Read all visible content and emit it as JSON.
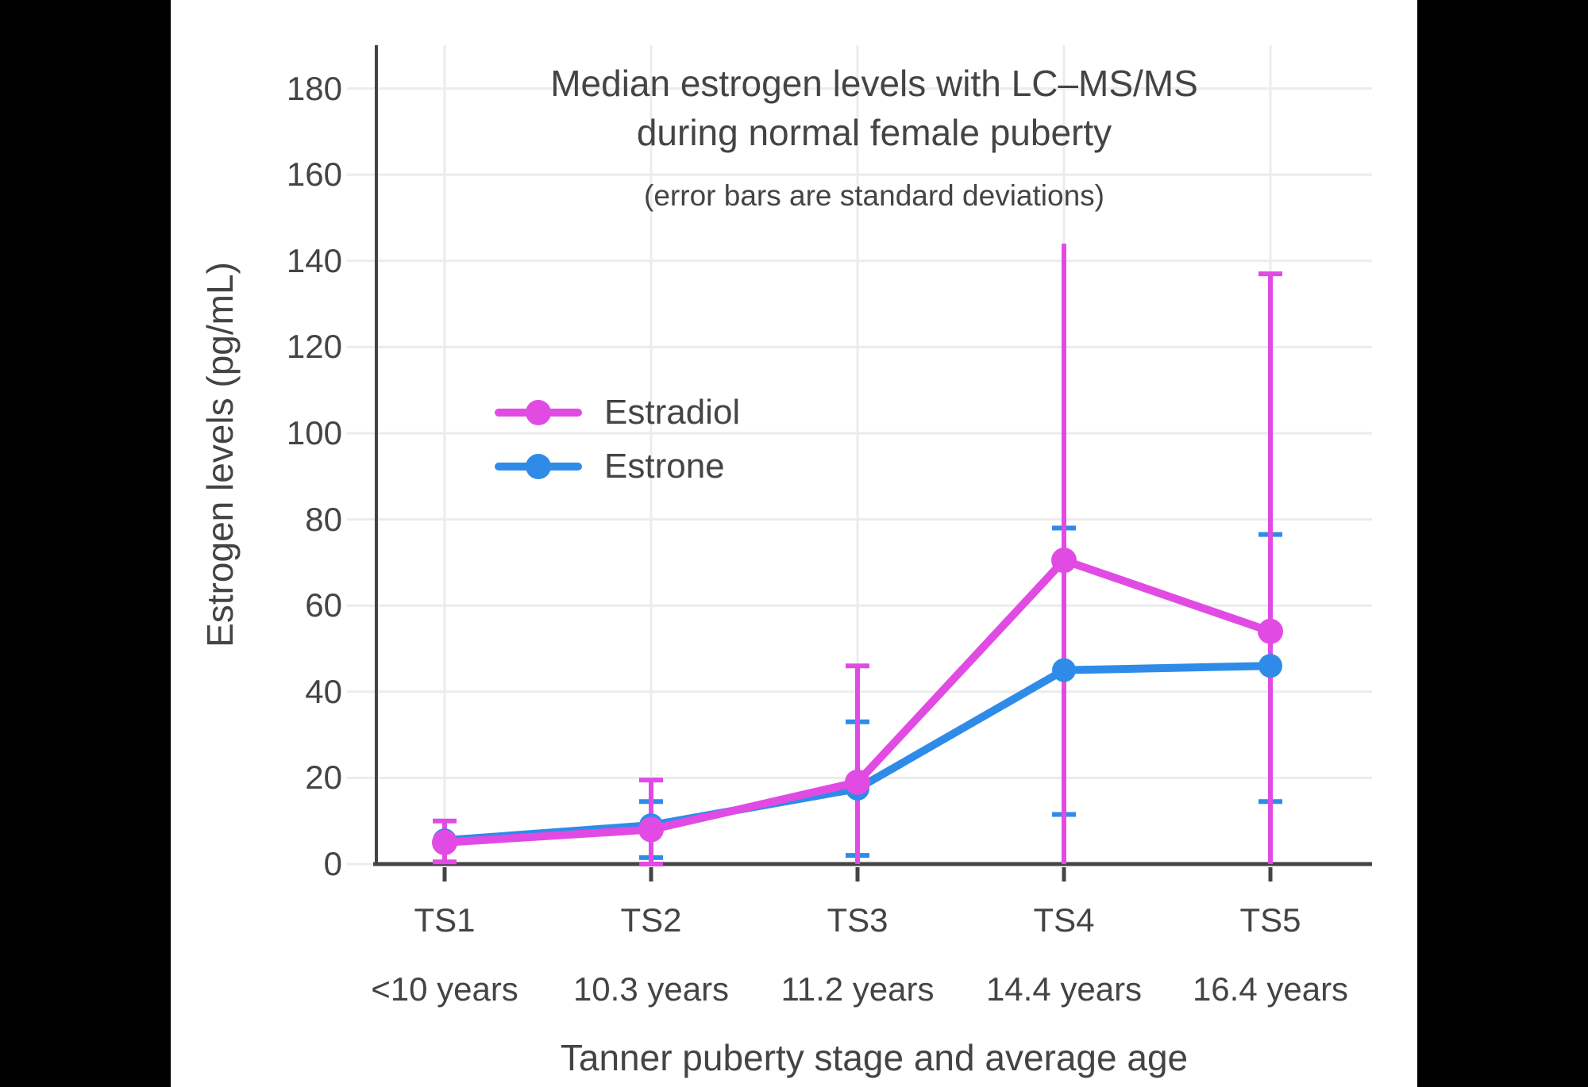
{
  "chart_data": {
    "type": "line",
    "title_line1": "Median estrogen levels with LC–MS/MS",
    "title_line2": "during normal female puberty",
    "subtitle": "(error bars are standard deviations)",
    "xlabel": "Tanner puberty stage and average age",
    "ylabel": "Estrogen levels (pg/mL)",
    "categories": [
      "TS1",
      "TS2",
      "TS3",
      "TS4",
      "TS5"
    ],
    "category_sublabels": [
      "<10 years",
      "10.3 years",
      "11.2 years",
      "14.4 years",
      "16.4 years"
    ],
    "yticks": [
      0,
      20,
      40,
      60,
      80,
      100,
      120,
      140,
      160,
      180
    ],
    "ylim": [
      0,
      190
    ],
    "grid": true,
    "legend_position": "inside-upper-left",
    "colors": {
      "estradiol": "#E14BE4",
      "estrone": "#2E8CE8",
      "text": "#444444",
      "grid": "#ECECEC",
      "axis": "#444444",
      "background": "#FFFFFF",
      "frame": "#000000"
    },
    "series": [
      {
        "name": "Estradiol",
        "color": "#E14BE4",
        "values": [
          5,
          8,
          19,
          70.5,
          54
        ],
        "error_bars": [
          {
            "lo": 0.5,
            "hi": 10,
            "cap_lo": true,
            "cap_hi": true
          },
          {
            "lo": 0,
            "hi": 19.5,
            "cap_lo": true,
            "cap_hi": true
          },
          {
            "lo": 0,
            "hi": 46,
            "cap_lo": false,
            "cap_hi": true
          },
          {
            "lo": 0,
            "hi": 144,
            "cap_lo": false,
            "cap_hi": false
          },
          {
            "lo": 0,
            "hi": 137,
            "cap_lo": false,
            "cap_hi": true
          }
        ]
      },
      {
        "name": "Estrone",
        "color": "#2E8CE8",
        "values": [
          5.5,
          9,
          17.5,
          45,
          46
        ],
        "error_bars": [
          null,
          {
            "lo": 1.5,
            "hi": 14.5,
            "cap_lo": true,
            "cap_hi": true
          },
          {
            "lo": 2,
            "hi": 33,
            "cap_lo": true,
            "cap_hi": true
          },
          {
            "lo": 11.5,
            "hi": 78,
            "cap_lo": true,
            "cap_hi": true
          },
          {
            "lo": 14.5,
            "hi": 76.5,
            "cap_lo": true,
            "cap_hi": true
          }
        ]
      }
    ]
  }
}
